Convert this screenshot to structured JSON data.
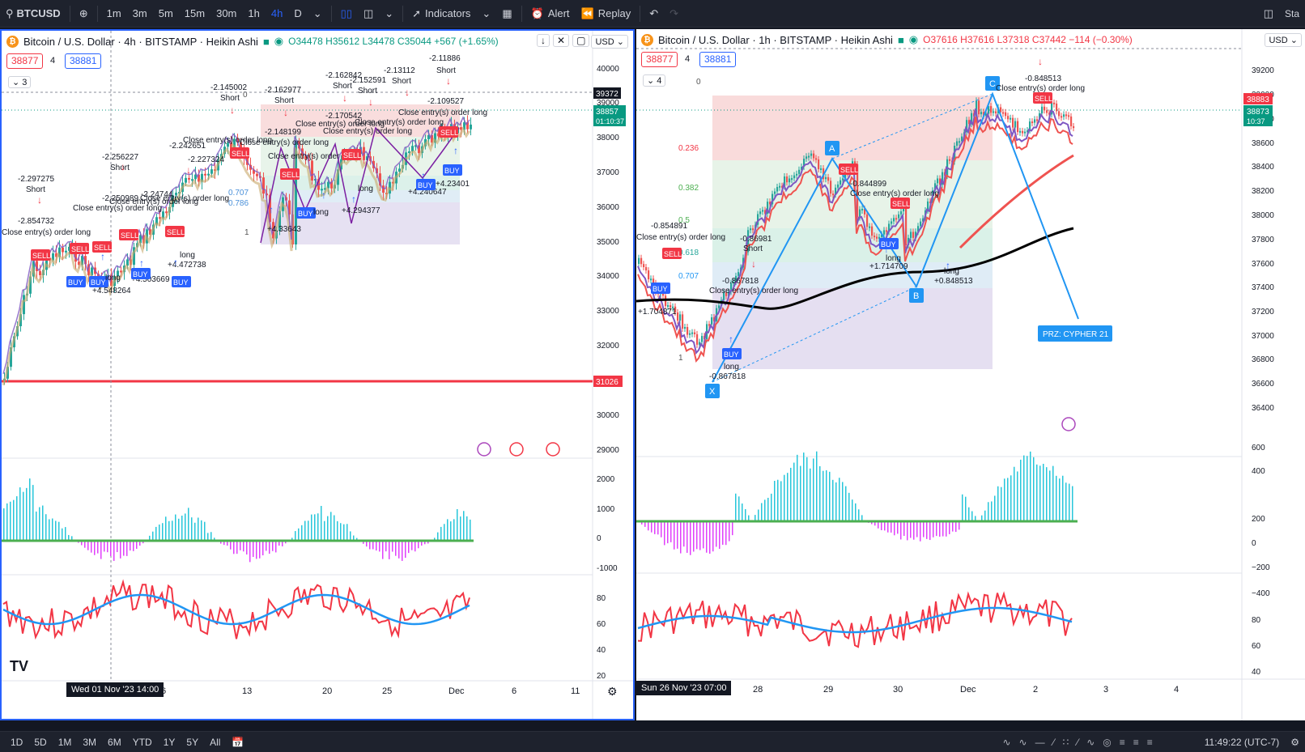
{
  "topbar": {
    "symbol": "BTCUSD",
    "intervals": [
      "1m",
      "3m",
      "5m",
      "15m",
      "30m",
      "1h",
      "4h",
      "D"
    ],
    "active_interval": "4h",
    "indicators": "Indicators",
    "alert": "Alert",
    "replay": "Replay",
    "right_label": "Sta"
  },
  "left": {
    "title": "Bitcoin / U.S. Dollar · 4h · BITSTAMP · Heikin Ashi",
    "ohlc": "O34478 H35612 L34478 C35044 +567 (+1.65%)",
    "currency": "USD",
    "chip_red": "38877",
    "chip_num": "4",
    "chip_blue": "38881",
    "collapse": "3",
    "y_labels": [
      "40000",
      "39000",
      "38000",
      "37000",
      "36000",
      "35000",
      "34000",
      "33000",
      "32000",
      "31000",
      "30000",
      "29000",
      "2000",
      "1000",
      "0",
      "-1000",
      "80",
      "60",
      "40",
      "20"
    ],
    "price_tags": {
      "top": "39372",
      "current": "38857",
      "countdown": "01:10:37",
      "red_line": "31026"
    },
    "x_labels": [
      "6",
      "13",
      "20",
      "25",
      "Dec",
      "6",
      "11"
    ],
    "cursor_date": "Wed 01 Nov '23  14:00",
    "annotations": [
      "-2.297275",
      "Short",
      "-2.854732",
      "-2.256227",
      "-2.250989",
      "-2.24744",
      "-2.242651",
      "-2.227324",
      "-2.145002",
      "-2.162977",
      "-2.162842",
      "-2.152591",
      "-2.13112",
      "-2.11886",
      "-2.109527",
      "-2.148199",
      "-2.170542",
      "+4.33643",
      "+4.294377",
      "+4.23401",
      "+4.240647",
      "+4.503669",
      "+4.548264",
      "+4.472738",
      "Close entry(s) order long",
      "SELL",
      "BUY",
      "long",
      "0.707",
      "0.786",
      "1",
      "0"
    ],
    "icons": [
      "flash-icon",
      "us-flag-icon",
      "us-flag-icon"
    ]
  },
  "right": {
    "title": "Bitcoin / U.S. Dollar · 1h · BITSTAMP · Heikin Ashi",
    "ohlc": "O37616 H37616 L37318 C37442 −114 (−0.30%)",
    "currency": "USD",
    "chip_red": "38877",
    "chip_num": "4",
    "chip_blue": "38881",
    "collapse": "4",
    "y_labels": [
      "39200",
      "39000",
      "38800",
      "38600",
      "38400",
      "38200",
      "38000",
      "37800",
      "37600",
      "37400",
      "37200",
      "37000",
      "36800",
      "36600",
      "36400",
      "600",
      "400",
      "200",
      "0",
      "−200",
      "−400",
      "80",
      "60",
      "40",
      "20"
    ],
    "price_tags": {
      "a": "38883",
      "b": "38873",
      "countdown": "10:37"
    },
    "fib_levels": [
      "0",
      "0.236",
      "0.382",
      "0.5",
      "0.618",
      "0.707",
      "1"
    ],
    "points": [
      "X",
      "A",
      "B",
      "C"
    ],
    "prz": "PRZ: CYPHER 21",
    "annotations": [
      "-0.848513",
      "Close entry(s) order long",
      "-0.844899",
      "-0.854891",
      "-0.86981",
      "Short",
      "-0.867818",
      "+1.714709",
      "+0.848513",
      "+1.704871",
      "SELL",
      "BUY",
      "long"
    ],
    "x_labels": [
      "28",
      "29",
      "30",
      "Dec",
      "2",
      "3",
      "4"
    ],
    "cursor_date": "Sun 26 Nov '23  07:00"
  },
  "bottombar": {
    "ranges": [
      "1D",
      "5D",
      "1M",
      "3M",
      "6M",
      "YTD",
      "1Y",
      "5Y",
      "All"
    ],
    "time": "11:49:22 (UTC-7)"
  },
  "colors": {
    "accent": "#2962ff",
    "up": "#089981",
    "down": "#f23645",
    "macd_up": "#26c6da",
    "macd_down": "#e040fb"
  }
}
